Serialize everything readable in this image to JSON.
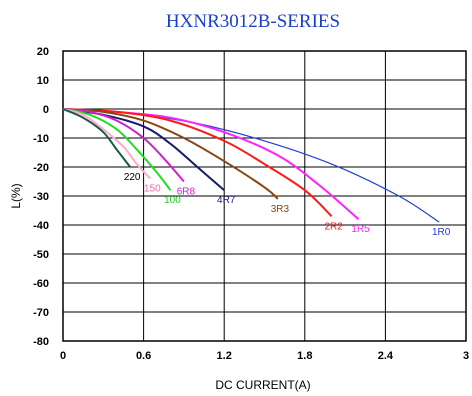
{
  "chart_data": {
    "type": "line",
    "title": "HXNR3012B-SERIES",
    "xlabel": "DC CURRENT(A)",
    "ylabel": "L(%)",
    "xlim": [
      0,
      3
    ],
    "ylim": [
      -80,
      20
    ],
    "x_ticks": [
      "0",
      "0.6",
      "1.2",
      "1.8",
      "2.4",
      "3"
    ],
    "y_ticks": [
      "20",
      "10",
      "0",
      "-10",
      "-20",
      "-30",
      "-40",
      "-50",
      "-60",
      "-70",
      "-80"
    ],
    "grid": true,
    "colors": {
      "title": "#1a3fc8",
      "ylabel": "#1a3fc8"
    },
    "series": [
      {
        "name": "1R0",
        "color": "#1f3fd6",
        "label_color": "#1f3fd6",
        "points": [
          [
            0,
            0
          ],
          [
            0.5,
            -1.5
          ],
          [
            1.0,
            -5
          ],
          [
            1.5,
            -11
          ],
          [
            2.0,
            -19
          ],
          [
            2.5,
            -30
          ],
          [
            2.8,
            -39
          ]
        ]
      },
      {
        "name": "1R5",
        "color": "#ff22ff",
        "label_color": "#ff22ff",
        "points": [
          [
            0,
            0
          ],
          [
            0.4,
            -1
          ],
          [
            0.8,
            -3
          ],
          [
            1.2,
            -8
          ],
          [
            1.6,
            -16
          ],
          [
            1.9,
            -26
          ],
          [
            2.2,
            -38
          ]
        ]
      },
      {
        "name": "2R2",
        "color": "#ff1a1a",
        "label_color": "#ff1a1a",
        "points": [
          [
            0,
            0
          ],
          [
            0.4,
            -1
          ],
          [
            0.8,
            -4
          ],
          [
            1.2,
            -11
          ],
          [
            1.5,
            -19
          ],
          [
            1.8,
            -28
          ],
          [
            2.0,
            -37
          ]
        ]
      },
      {
        "name": "3R3",
        "color": "#8b4513",
        "label_color": "#8b4513",
        "points": [
          [
            0,
            0
          ],
          [
            0.3,
            -1
          ],
          [
            0.6,
            -4
          ],
          [
            0.9,
            -10
          ],
          [
            1.2,
            -18
          ],
          [
            1.5,
            -27
          ],
          [
            1.6,
            -31
          ]
        ]
      },
      {
        "name": "4R7",
        "color": "#1a1a6e",
        "label_color": "#1a1a6e",
        "points": [
          [
            0,
            0
          ],
          [
            0.3,
            -2
          ],
          [
            0.6,
            -6
          ],
          [
            0.8,
            -12
          ],
          [
            1.0,
            -20
          ],
          [
            1.2,
            -28
          ]
        ]
      },
      {
        "name": "6R8",
        "color": "#cc22cc",
        "label_color": "#cc22cc",
        "points": [
          [
            0,
            0
          ],
          [
            0.2,
            -1
          ],
          [
            0.4,
            -4
          ],
          [
            0.6,
            -10
          ],
          [
            0.75,
            -17
          ],
          [
            0.9,
            -25
          ]
        ]
      },
      {
        "name": "100",
        "color": "#22dd22",
        "label_color": "#22cc22",
        "points": [
          [
            0,
            0
          ],
          [
            0.2,
            -2
          ],
          [
            0.4,
            -7
          ],
          [
            0.55,
            -14
          ],
          [
            0.7,
            -22
          ],
          [
            0.8,
            -28
          ]
        ]
      },
      {
        "name": "150",
        "color": "#ffaacc",
        "label_color": "#ff66aa",
        "points": [
          [
            0,
            0
          ],
          [
            0.15,
            -2
          ],
          [
            0.3,
            -7
          ],
          [
            0.45,
            -13
          ],
          [
            0.55,
            -19
          ],
          [
            0.65,
            -24
          ]
        ]
      },
      {
        "name": "220",
        "color": "#1a5a4a",
        "label_color": "#000000",
        "points": [
          [
            0,
            0
          ],
          [
            0.15,
            -3
          ],
          [
            0.3,
            -8
          ],
          [
            0.4,
            -14
          ],
          [
            0.5,
            -20
          ]
        ]
      }
    ]
  }
}
